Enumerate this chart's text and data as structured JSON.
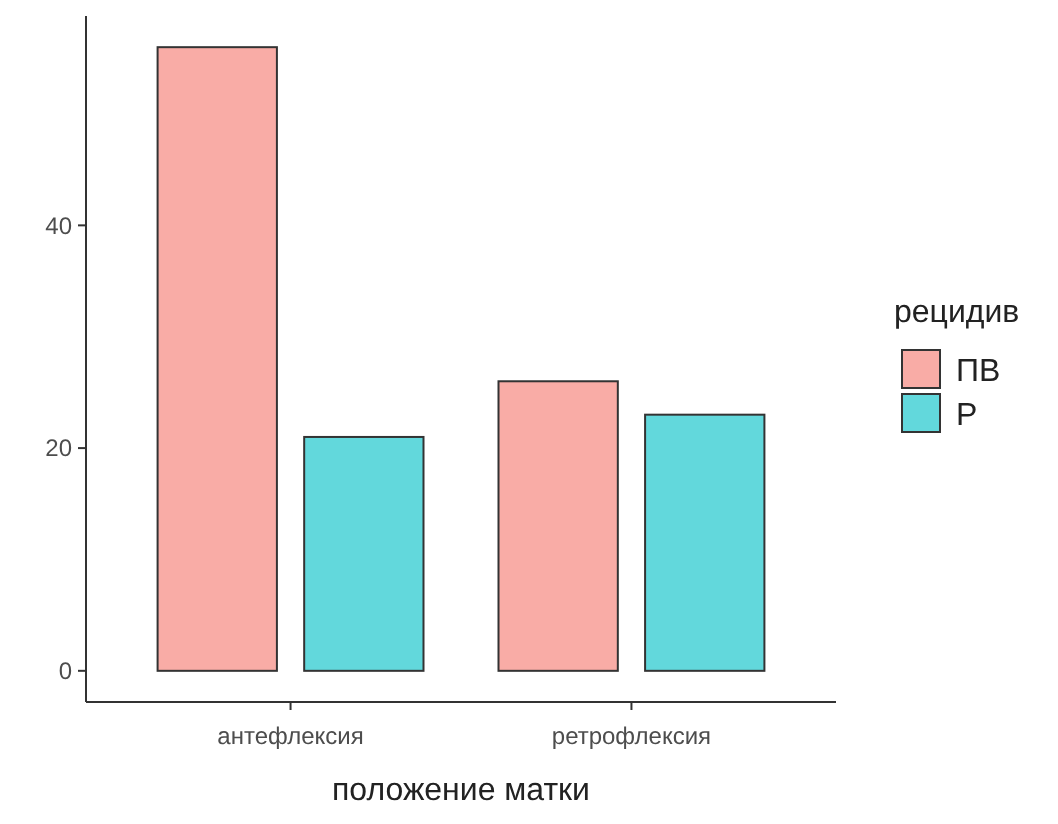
{
  "chart_data": {
    "type": "bar",
    "xlabel": "положение матки",
    "legend_title": "рецидив",
    "categories": [
      "антефлексия",
      "ретрофлексия"
    ],
    "series": [
      {
        "name": "ПВ",
        "color": "#f9aca6",
        "values": [
          56,
          26
        ]
      },
      {
        "name": "Р",
        "color": "#62d8dc",
        "values": [
          21,
          23
        ]
      }
    ],
    "ylim": [
      -2.8,
      58.8
    ],
    "yticks": [
      0,
      20,
      40
    ],
    "grid": false,
    "legend": "right"
  }
}
